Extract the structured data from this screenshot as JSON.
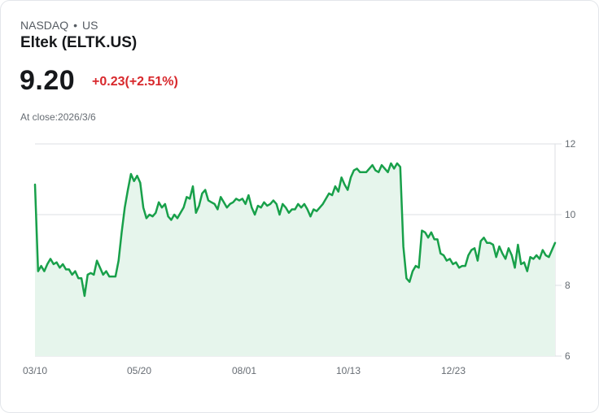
{
  "header": {
    "exchange": "NASDAQ",
    "separator": "•",
    "region": "US",
    "title": "Eltek (ELTK.US)",
    "price": "9.20",
    "change": "+0.23(+2.51%)",
    "at_close": "At close:2026/3/6"
  },
  "colors": {
    "line": "#18a04a",
    "fill": "#e6f5ec",
    "grid": "#dcdfe3",
    "change": "#d8282c"
  },
  "chart_data": {
    "type": "area",
    "title": "Eltek (ELTK.US)",
    "xlabel": "",
    "ylabel": "",
    "ylim": [
      6,
      12
    ],
    "yticks": [
      12,
      10,
      8,
      6
    ],
    "xticks": [
      "03/10",
      "05/20",
      "08/01",
      "10/13",
      "12/23"
    ],
    "grid": true,
    "legend": "none",
    "y_axis_position": "right",
    "values": [
      10.85,
      8.4,
      8.55,
      8.4,
      8.6,
      8.75,
      8.6,
      8.65,
      8.5,
      8.6,
      8.45,
      8.45,
      8.3,
      8.4,
      8.2,
      8.2,
      7.7,
      8.3,
      8.35,
      8.3,
      8.7,
      8.5,
      8.3,
      8.4,
      8.25,
      8.25,
      8.25,
      8.7,
      9.5,
      10.2,
      10.7,
      11.15,
      10.95,
      11.1,
      10.9,
      10.2,
      9.9,
      10.0,
      9.95,
      10.05,
      10.35,
      10.2,
      10.3,
      9.95,
      9.85,
      10.0,
      9.9,
      10.05,
      10.2,
      10.5,
      10.45,
      10.8,
      10.05,
      10.25,
      10.6,
      10.7,
      10.4,
      10.35,
      10.3,
      10.15,
      10.5,
      10.35,
      10.2,
      10.3,
      10.35,
      10.45,
      10.4,
      10.45,
      10.3,
      10.55,
      10.2,
      10.0,
      10.25,
      10.2,
      10.35,
      10.25,
      10.3,
      10.4,
      10.3,
      10.0,
      10.3,
      10.2,
      10.05,
      10.15,
      10.15,
      10.3,
      10.2,
      10.3,
      10.15,
      9.95,
      10.15,
      10.1,
      10.2,
      10.3,
      10.45,
      10.6,
      10.55,
      10.8,
      10.65,
      11.05,
      10.85,
      10.7,
      11.05,
      11.25,
      11.3,
      11.2,
      11.2,
      11.2,
      11.3,
      11.4,
      11.25,
      11.2,
      11.4,
      11.3,
      11.2,
      11.45,
      11.3,
      11.45,
      11.35,
      9.1,
      8.2,
      8.1,
      8.4,
      8.55,
      8.5,
      9.55,
      9.5,
      9.35,
      9.5,
      9.3,
      9.3,
      8.9,
      8.85,
      8.7,
      8.75,
      8.6,
      8.65,
      8.5,
      8.55,
      8.55,
      8.85,
      9.0,
      9.05,
      8.7,
      9.25,
      9.35,
      9.2,
      9.2,
      9.15,
      8.8,
      9.1,
      8.9,
      8.75,
      9.05,
      8.85,
      8.5,
      9.15,
      8.6,
      8.65,
      8.4,
      8.8,
      8.75,
      8.85,
      8.75,
      9.0,
      8.85,
      8.8,
      9.0,
      9.2
    ]
  }
}
